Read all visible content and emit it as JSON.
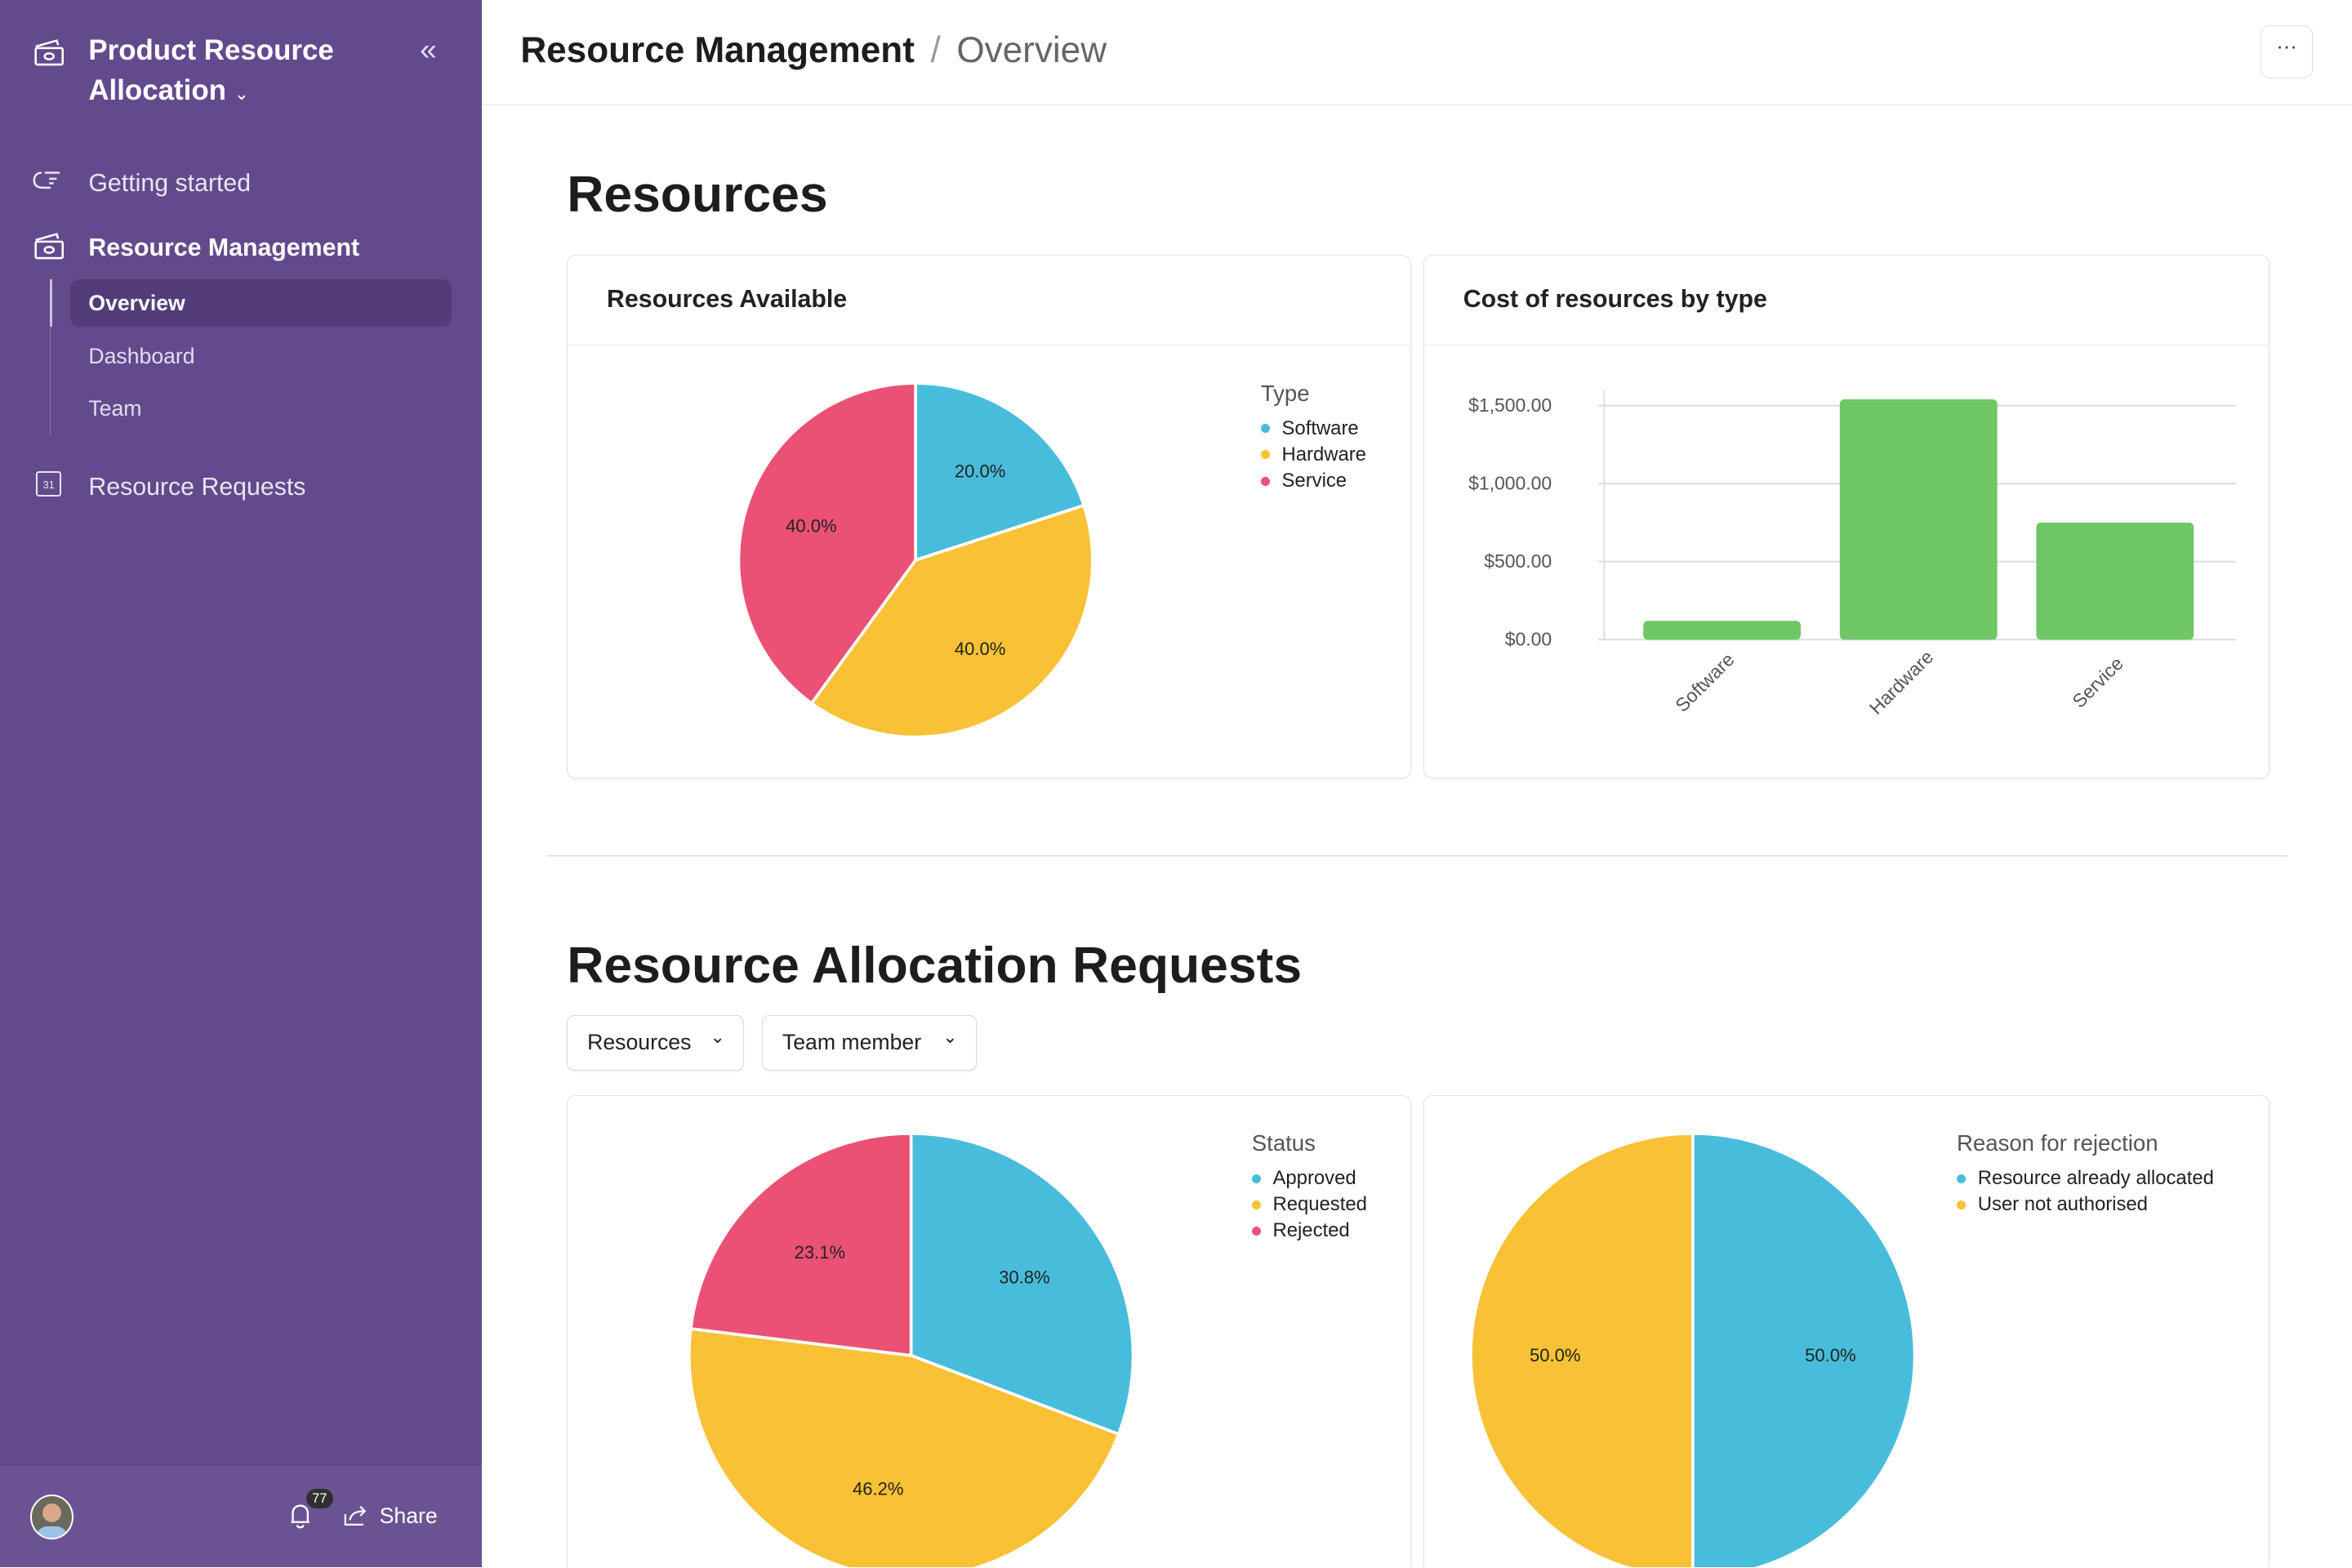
{
  "sidebar": {
    "title": "Product Resource Allocation",
    "nav": [
      {
        "label": "Getting started",
        "icon": "pointing-hand-icon"
      },
      {
        "label": "Resource Management",
        "icon": "money-icon"
      },
      {
        "label": "Resource Requests",
        "icon": "calendar-icon"
      }
    ],
    "calendar_day": "31",
    "sub": [
      {
        "label": "Overview"
      },
      {
        "label": "Dashboard"
      },
      {
        "label": "Team"
      }
    ],
    "notifications": "77",
    "share": "Share"
  },
  "header": {
    "title": "Resource Management",
    "sep": "/",
    "page": "Overview",
    "more": "···"
  },
  "resources": {
    "heading": "Resources",
    "available_title": "Resources Available",
    "cost_title": "Cost of resources by type"
  },
  "requests": {
    "heading": "Resource Allocation Requests",
    "filters": [
      "Resources",
      "Team member"
    ]
  },
  "colors": {
    "blue": "#48bddb",
    "yellow": "#f8c136",
    "pink": "#ea5175",
    "green": "#6fc765",
    "sidebar": "#634a8c"
  },
  "chart_data": [
    {
      "type": "pie",
      "title": "Resources Available",
      "legend_title": "Type",
      "legend_position": "top-right",
      "labels": [
        "Software",
        "Hardware",
        "Service"
      ],
      "values": [
        20.0,
        40.0,
        40.0
      ],
      "display": [
        "20.0%",
        "40.0%",
        "40.0%"
      ],
      "colors": [
        "#48bddb",
        "#f8c136",
        "#ea5175"
      ]
    },
    {
      "type": "bar",
      "title": "Cost of resources by type",
      "categories": [
        "Software",
        "Hardware",
        "Service"
      ],
      "values": [
        120,
        1540,
        750
      ],
      "yticks": [
        "$0.00",
        "$500.00",
        "$1,000.00",
        "$1,500.00"
      ],
      "ytick_values": [
        0,
        500,
        1000,
        1500
      ],
      "ylim": [
        0,
        1500
      ],
      "grid": true,
      "color": "#6fc765"
    },
    {
      "type": "pie",
      "legend_title": "Status",
      "legend_position": "top-right",
      "labels": [
        "Approved",
        "Requested",
        "Rejected"
      ],
      "values": [
        30.8,
        46.2,
        23.1
      ],
      "display": [
        "30.8%",
        "46.2%",
        "23.1%"
      ],
      "colors": [
        "#48bddb",
        "#f8c136",
        "#ea5175"
      ]
    },
    {
      "type": "pie",
      "legend_title": "Reason for rejection",
      "legend_position": "top-right",
      "labels": [
        "Resource already allocated",
        "User not authorised"
      ],
      "values": [
        50.0,
        50.0
      ],
      "display": [
        "50.0%",
        "50.0%"
      ],
      "colors": [
        "#48bddb",
        "#f8c136"
      ]
    }
  ]
}
